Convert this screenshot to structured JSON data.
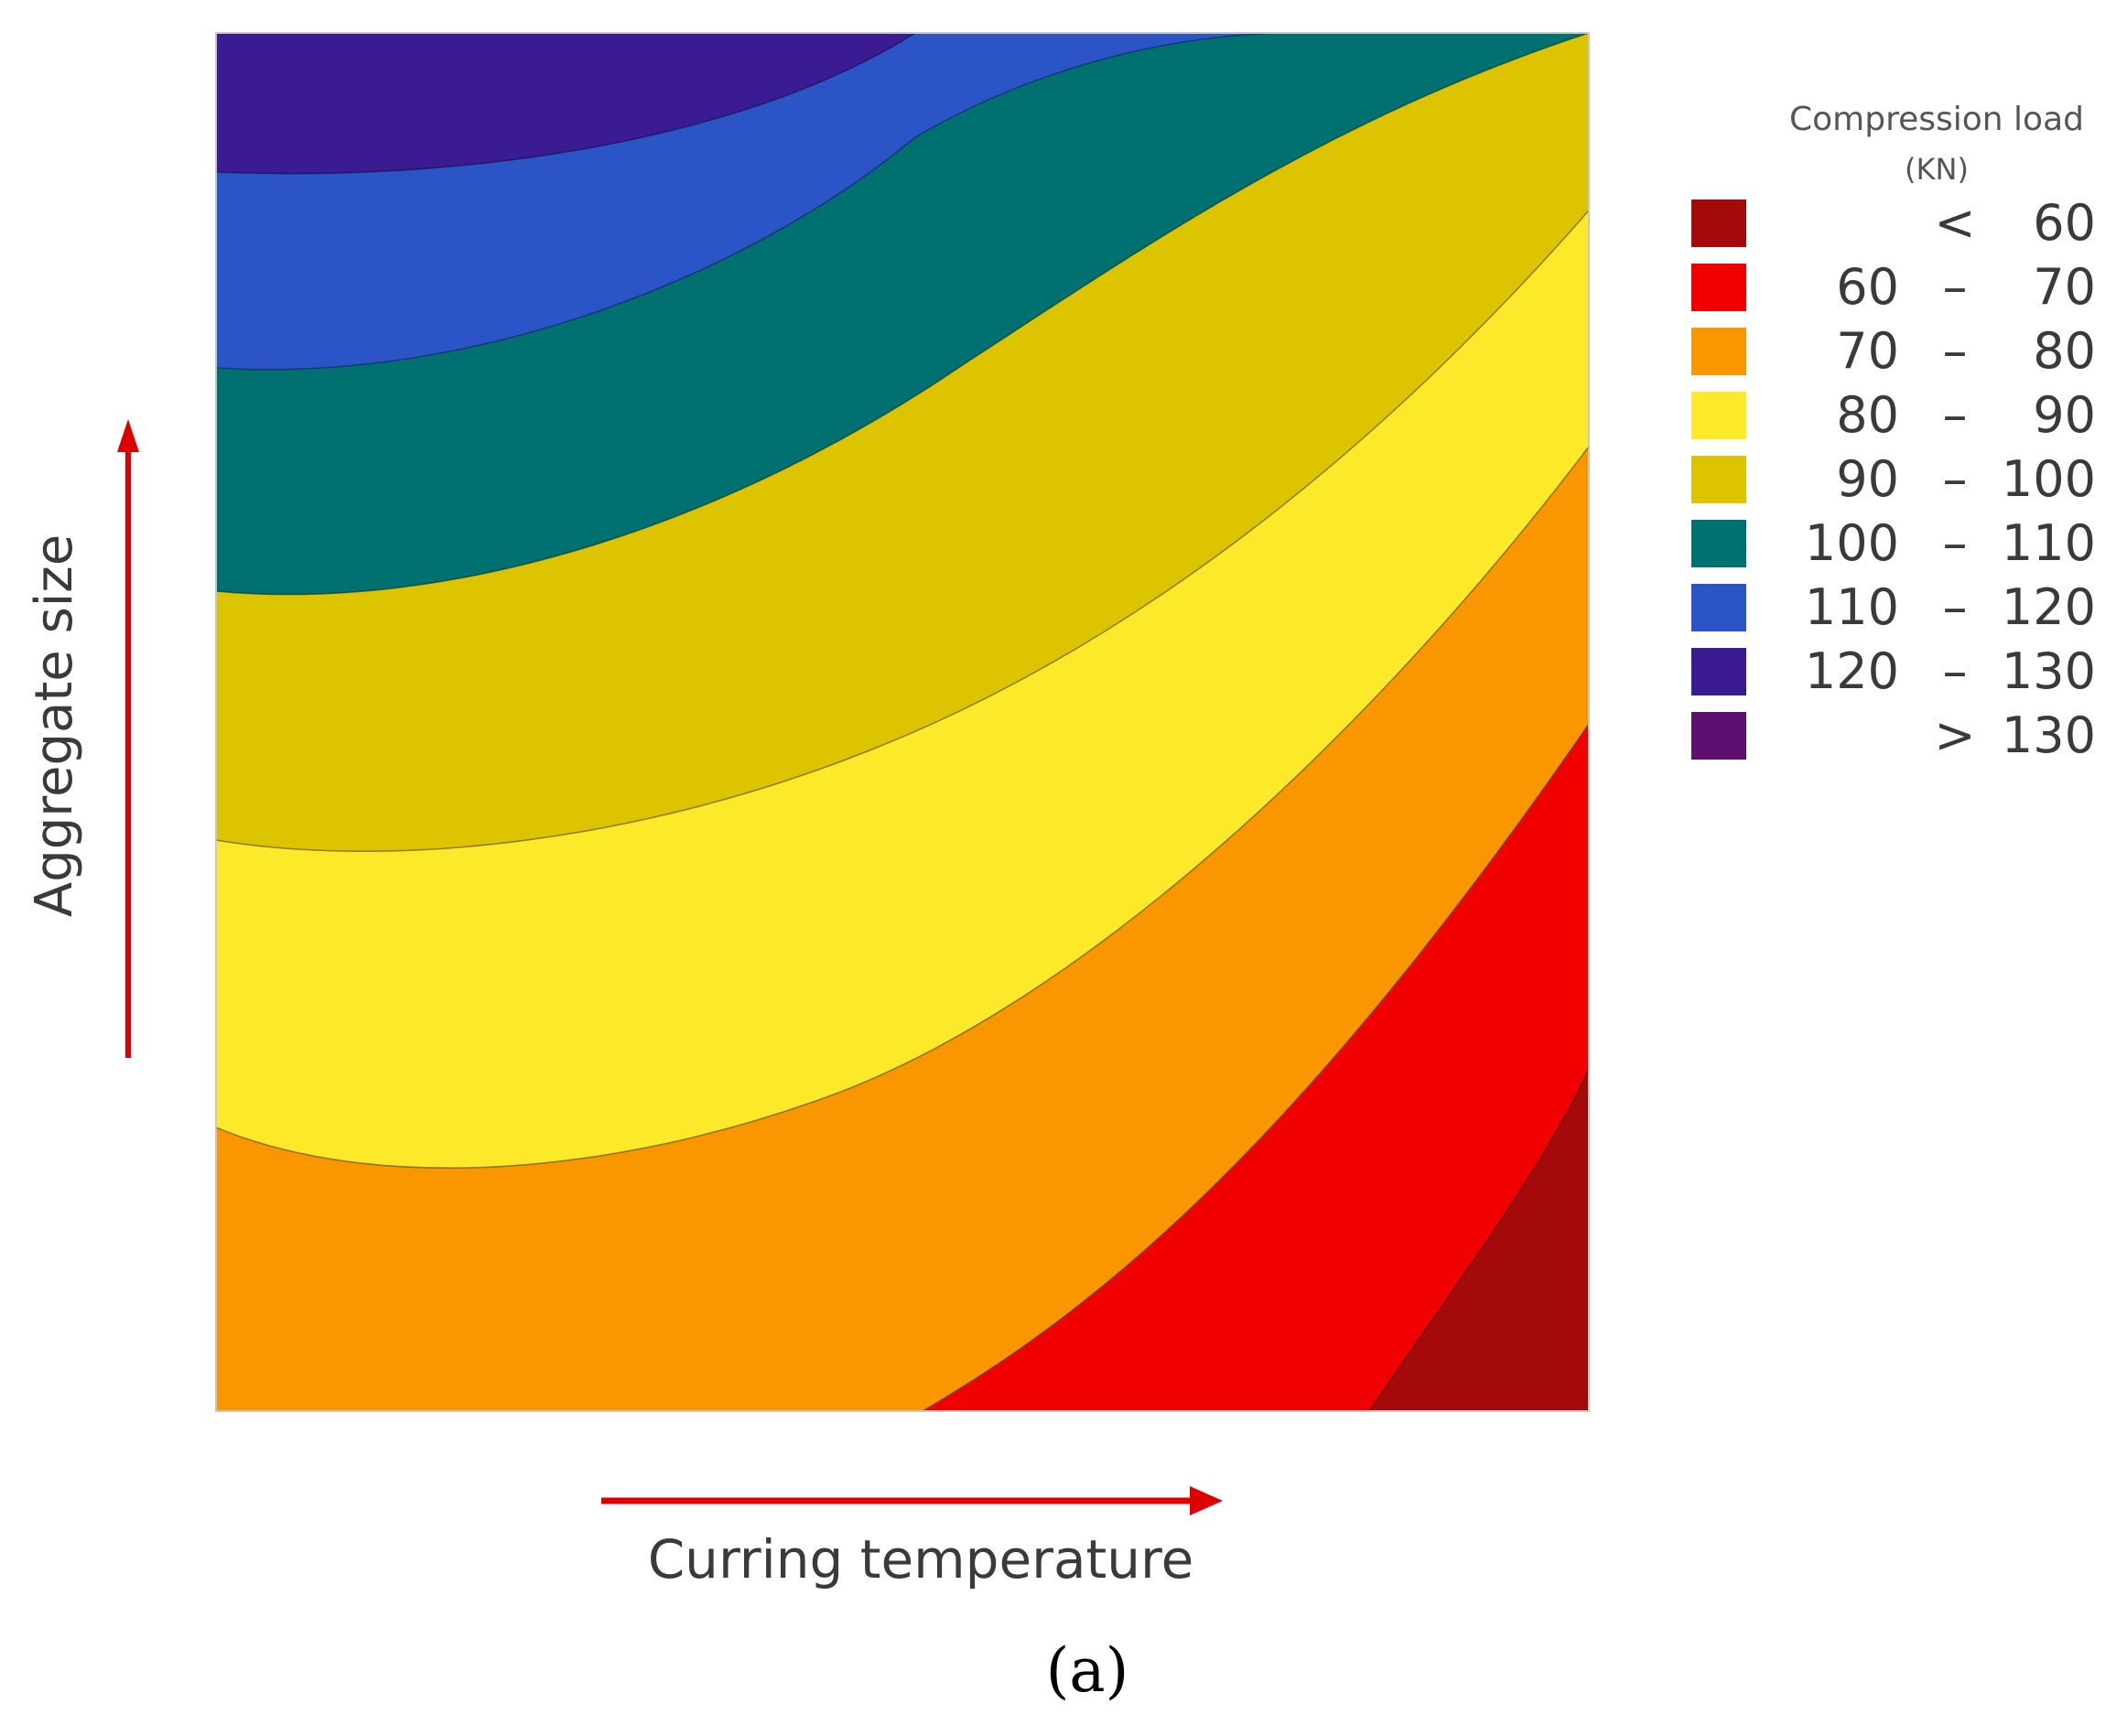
{
  "chart_data": {
    "type": "contour",
    "xlabel": "Curring temperature",
    "ylabel": "Aggregate size",
    "legend_title_line1": "Compression load",
    "legend_title_line2": "(KN)",
    "legend_position": "right",
    "levels": [
      {
        "op": "<",
        "lo": "",
        "hi": "60",
        "color": "#a50a0a"
      },
      {
        "op": "–",
        "lo": "60",
        "hi": "70",
        "color": "#f00000"
      },
      {
        "op": "–",
        "lo": "70",
        "hi": "80",
        "color": "#fa9600"
      },
      {
        "op": "–",
        "lo": "80",
        "hi": "90",
        "color": "#fcea2a"
      },
      {
        "op": "–",
        "lo": "90",
        "hi": "100",
        "color": "#dcc400"
      },
      {
        "op": "–",
        "lo": "100",
        "hi": "110",
        "color": "#007170"
      },
      {
        "op": "–",
        "lo": "110",
        "hi": "120",
        "color": "#2b55c6"
      },
      {
        "op": "–",
        "lo": "120",
        "hi": "130",
        "color": "#3a1b92"
      },
      {
        "op": ">",
        "lo": "",
        "hi": "130",
        "color": "#5e1070"
      }
    ],
    "axis_arrow_color": "#e00000",
    "caption": "(a)"
  }
}
